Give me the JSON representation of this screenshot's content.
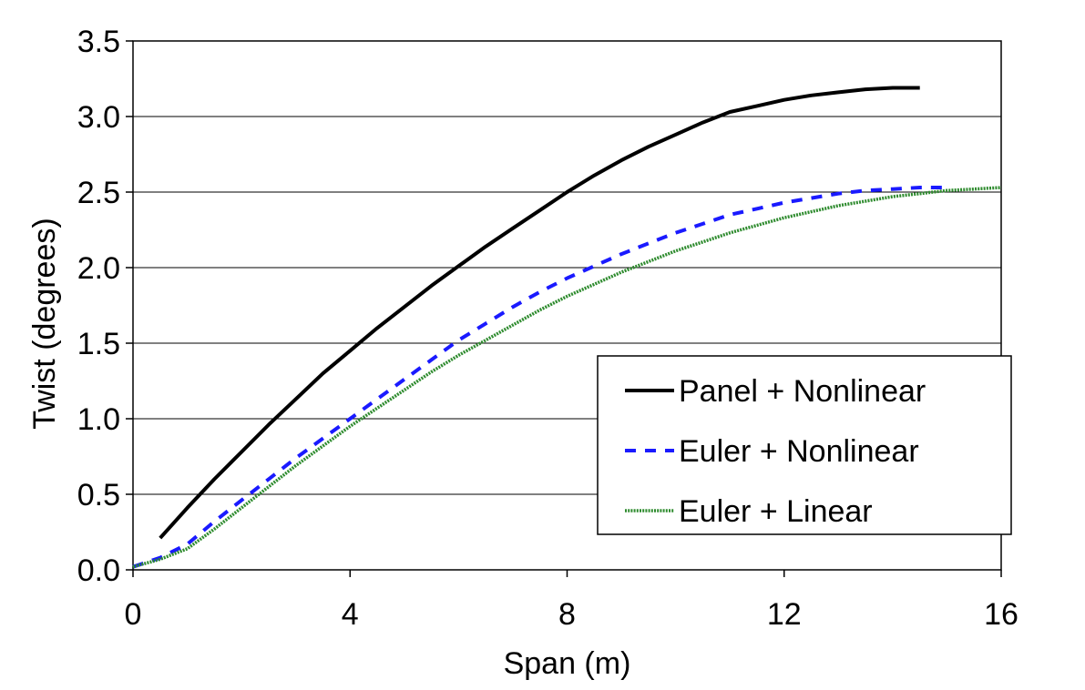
{
  "chart_data": {
    "type": "line",
    "title": "",
    "xlabel": "Span (m)",
    "ylabel": "Twist (degrees)",
    "xlim": [
      0,
      16
    ],
    "ylim": [
      0,
      3.5
    ],
    "xticks": [
      0,
      4,
      8,
      12,
      16
    ],
    "xtick_labels": [
      "0",
      "4",
      "8",
      "12",
      "16"
    ],
    "yticks": [
      0,
      0.5,
      1,
      1.5,
      2,
      2.5,
      3,
      3.5
    ],
    "ytick_labels": [
      "0.0",
      "0.5",
      "1.0",
      "1.5",
      "2.0",
      "2.5",
      "3.0",
      "3.5"
    ],
    "grid": "horizontal",
    "legend_position": "lower-right",
    "series": [
      {
        "name": "Panel + Nonlinear",
        "color": "#000000",
        "style": "solid",
        "x": [
          0.5,
          1.0,
          1.5,
          2.0,
          2.5,
          3.0,
          3.5,
          4.0,
          4.5,
          5.0,
          5.5,
          6.0,
          6.5,
          7.0,
          7.5,
          8.0,
          8.5,
          9.0,
          9.5,
          10.0,
          10.5,
          11.0,
          11.5,
          12.0,
          12.5,
          13.0,
          13.5,
          14.0,
          14.5
        ],
        "y": [
          0.21,
          0.41,
          0.6,
          0.78,
          0.96,
          1.13,
          1.3,
          1.45,
          1.6,
          1.74,
          1.88,
          2.01,
          2.14,
          2.26,
          2.38,
          2.5,
          2.61,
          2.71,
          2.8,
          2.88,
          2.96,
          3.03,
          3.07,
          3.11,
          3.14,
          3.16,
          3.18,
          3.19,
          3.19
        ]
      },
      {
        "name": "Euler + Nonlinear",
        "color": "#1a1aff",
        "style": "dashed",
        "x": [
          0.0,
          0.5,
          1.0,
          1.5,
          2.0,
          2.5,
          3.0,
          3.5,
          4.0,
          4.5,
          5.0,
          5.5,
          6.0,
          6.5,
          7.0,
          7.5,
          8.0,
          8.5,
          9.0,
          9.5,
          10.0,
          10.5,
          11.0,
          11.5,
          12.0,
          12.5,
          13.0,
          13.5,
          14.0,
          14.5,
          15.0
        ],
        "y": [
          0.02,
          0.08,
          0.17,
          0.32,
          0.46,
          0.6,
          0.74,
          0.87,
          1.0,
          1.13,
          1.26,
          1.39,
          1.52,
          1.63,
          1.74,
          1.84,
          1.93,
          2.01,
          2.09,
          2.16,
          2.23,
          2.29,
          2.35,
          2.39,
          2.43,
          2.46,
          2.49,
          2.51,
          2.52,
          2.53,
          2.53
        ]
      },
      {
        "name": "Euler + Linear",
        "color": "#2e8b2e",
        "style": "dotted",
        "x": [
          0.0,
          0.5,
          1.0,
          1.5,
          2.0,
          2.5,
          3.0,
          3.5,
          4.0,
          4.5,
          5.0,
          5.5,
          6.0,
          6.5,
          7.0,
          7.5,
          8.0,
          8.5,
          9.0,
          9.5,
          10.0,
          10.5,
          11.0,
          11.5,
          12.0,
          12.5,
          13.0,
          13.5,
          14.0,
          14.5,
          15.0,
          15.5,
          16.0
        ],
        "y": [
          0.02,
          0.07,
          0.14,
          0.27,
          0.41,
          0.55,
          0.69,
          0.82,
          0.95,
          1.07,
          1.19,
          1.31,
          1.42,
          1.52,
          1.62,
          1.72,
          1.81,
          1.89,
          1.97,
          2.04,
          2.11,
          2.17,
          2.23,
          2.28,
          2.33,
          2.37,
          2.41,
          2.44,
          2.47,
          2.49,
          2.51,
          2.52,
          2.53
        ]
      }
    ]
  }
}
